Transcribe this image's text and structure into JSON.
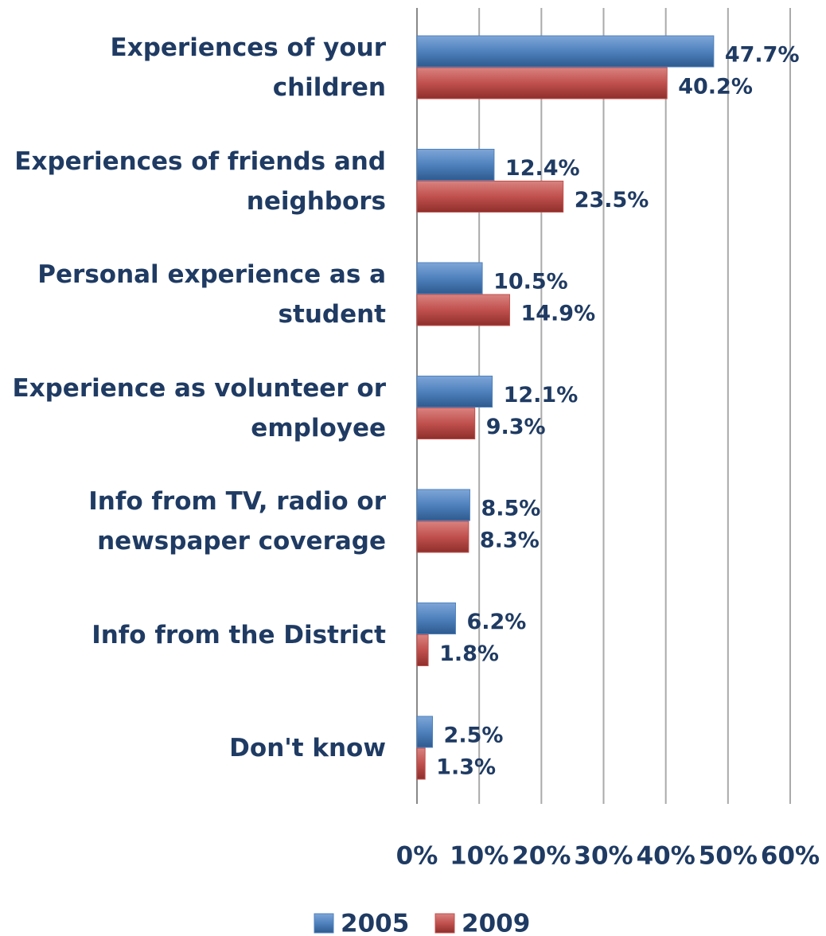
{
  "chart_data": {
    "type": "hbar",
    "categories": [
      "Experiences of your children",
      "Experiences of friends and neighbors",
      "Personal experience as a student",
      "Experience as volunteer or employee",
      "Info from TV, radio or newspaper coverage",
      "Info from the District",
      "Don't know"
    ],
    "series": [
      {
        "name": "2005",
        "color": "#4f81bd",
        "values": [
          47.7,
          12.4,
          10.5,
          12.1,
          8.5,
          6.2,
          2.5
        ],
        "value_labels": [
          "47.7%",
          "12.4%",
          "10.5%",
          "12.1%",
          "8.5%",
          "6.2%",
          "2.5%"
        ]
      },
      {
        "name": "2009",
        "color": "#c0504d",
        "values": [
          40.2,
          23.5,
          14.9,
          9.3,
          8.3,
          1.8,
          1.3
        ],
        "value_labels": [
          "40.2%",
          "23.5%",
          "14.9%",
          "9.3%",
          "8.3%",
          "1.8%",
          "1.3%"
        ]
      }
    ],
    "xlim": [
      0,
      60
    ],
    "xticks": [
      {
        "value": 0,
        "label": "0%"
      },
      {
        "value": 10,
        "label": "10%"
      },
      {
        "value": 20,
        "label": "20%"
      },
      {
        "value": 30,
        "label": "30%"
      },
      {
        "value": 40,
        "label": "40%"
      },
      {
        "value": 50,
        "label": "50%"
      },
      {
        "value": 60,
        "label": "60%"
      }
    ],
    "grid": true,
    "legend": "bottom"
  }
}
